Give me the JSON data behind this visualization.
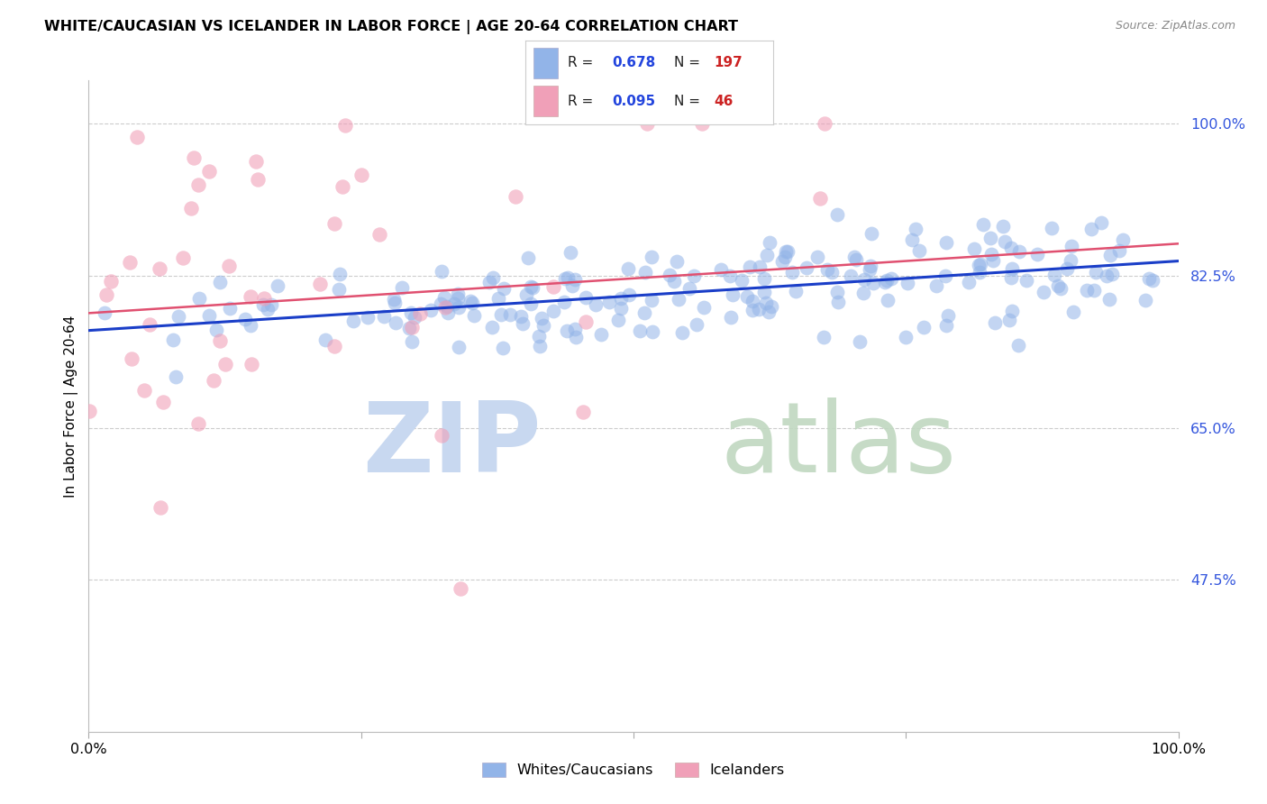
{
  "title": "WHITE/CAUCASIAN VS ICELANDER IN LABOR FORCE | AGE 20-64 CORRELATION CHART",
  "source": "Source: ZipAtlas.com",
  "ylabel": "In Labor Force | Age 20-64",
  "ytick_labels": [
    "100.0%",
    "82.5%",
    "65.0%",
    "47.5%"
  ],
  "ytick_values": [
    1.0,
    0.825,
    0.65,
    0.475
  ],
  "xlim": [
    0.0,
    1.0
  ],
  "ylim": [
    0.3,
    1.05
  ],
  "blue_color": "#92b4e8",
  "blue_line_color": "#1a3ec8",
  "pink_color": "#f0a0b8",
  "pink_line_color": "#e05070",
  "legend_r_blue": "0.678",
  "legend_n_blue": "197",
  "legend_r_pink": "0.095",
  "legend_n_pink": "46",
  "blue_trend_y_start": 0.762,
  "blue_trend_y_end": 0.842,
  "pink_trend_y_start": 0.782,
  "pink_trend_y_end": 0.862
}
